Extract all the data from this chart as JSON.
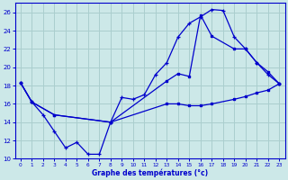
{
  "title": "Graphe des températures (°c)",
  "bg_color": "#cce8e8",
  "line_color": "#0000cc",
  "grid_color": "#aacece",
  "xlim": [
    -0.5,
    23.5
  ],
  "ylim": [
    10,
    27
  ],
  "yticks": [
    10,
    12,
    14,
    16,
    18,
    20,
    22,
    24,
    26
  ],
  "xticks": [
    0,
    1,
    2,
    3,
    4,
    5,
    6,
    7,
    8,
    9,
    10,
    11,
    12,
    13,
    14,
    15,
    16,
    17,
    18,
    19,
    20,
    21,
    22,
    23
  ],
  "curve1_x": [
    0,
    1,
    2,
    3,
    4,
    5,
    6,
    7,
    8,
    9,
    10,
    11,
    12,
    13,
    14,
    15,
    16,
    17,
    18,
    19,
    20,
    21,
    22,
    23
  ],
  "curve1_y": [
    18.3,
    16.2,
    14.8,
    13.0,
    11.2,
    11.8,
    10.5,
    10.5,
    14.0,
    16.7,
    16.5,
    17.0,
    19.2,
    20.5,
    23.3,
    24.8,
    25.5,
    26.3,
    26.2,
    23.3,
    22.0,
    20.5,
    19.2,
    18.2
  ],
  "curve2_x": [
    0,
    1,
    3,
    8,
    13,
    14,
    15,
    16,
    17,
    19,
    20,
    21,
    22,
    23
  ],
  "curve2_y": [
    18.3,
    16.2,
    14.8,
    14.0,
    18.5,
    19.3,
    19.0,
    25.7,
    23.4,
    22.0,
    22.0,
    20.5,
    19.5,
    18.2
  ],
  "curve3_x": [
    0,
    1,
    3,
    8,
    13,
    14,
    15,
    16,
    17,
    19,
    20,
    21,
    22,
    23
  ],
  "curve3_y": [
    18.3,
    16.2,
    14.8,
    14.0,
    16.0,
    16.0,
    15.8,
    15.8,
    16.0,
    16.5,
    16.8,
    17.2,
    17.5,
    18.2
  ]
}
